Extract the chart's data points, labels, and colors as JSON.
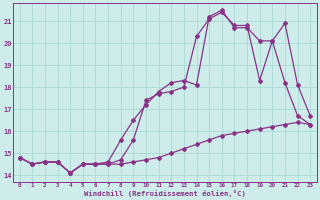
{
  "xlabel": "Windchill (Refroidissement éolien,°C)",
  "background_color": "#ceecea",
  "grid_color": "#aad8d5",
  "line_color": "#883388",
  "xlim": [
    -0.5,
    23.5
  ],
  "ylim": [
    13.7,
    21.8
  ],
  "xticks": [
    0,
    1,
    2,
    3,
    4,
    5,
    6,
    7,
    8,
    9,
    10,
    11,
    12,
    13,
    14,
    15,
    16,
    17,
    18,
    19,
    20,
    21,
    22,
    23
  ],
  "yticks": [
    14,
    15,
    16,
    17,
    18,
    19,
    20,
    21
  ],
  "line1_y": [
    14.8,
    14.5,
    14.6,
    14.6,
    14.1,
    14.5,
    14.5,
    14.5,
    14.5,
    14.6,
    14.7,
    14.8,
    15.0,
    15.2,
    15.4,
    15.6,
    15.8,
    15.9,
    16.0,
    16.1,
    16.2,
    16.3,
    16.4,
    16.3
  ],
  "line2_y": [
    14.8,
    14.5,
    14.6,
    14.6,
    14.1,
    14.5,
    14.5,
    14.5,
    14.7,
    15.6,
    17.4,
    17.7,
    17.8,
    18.0,
    20.3,
    21.1,
    21.4,
    20.8,
    20.8,
    18.3,
    20.1,
    18.2,
    16.7,
    16.3
  ],
  "line3_y": [
    14.8,
    14.5,
    14.6,
    14.6,
    14.1,
    14.5,
    14.5,
    14.6,
    15.6,
    16.5,
    17.2,
    17.8,
    18.2,
    18.3,
    18.1,
    21.2,
    21.5,
    20.7,
    20.7,
    20.1,
    20.1,
    20.9,
    18.1,
    16.7
  ],
  "marker": "D",
  "markersize": 2.0,
  "linewidth": 0.9
}
